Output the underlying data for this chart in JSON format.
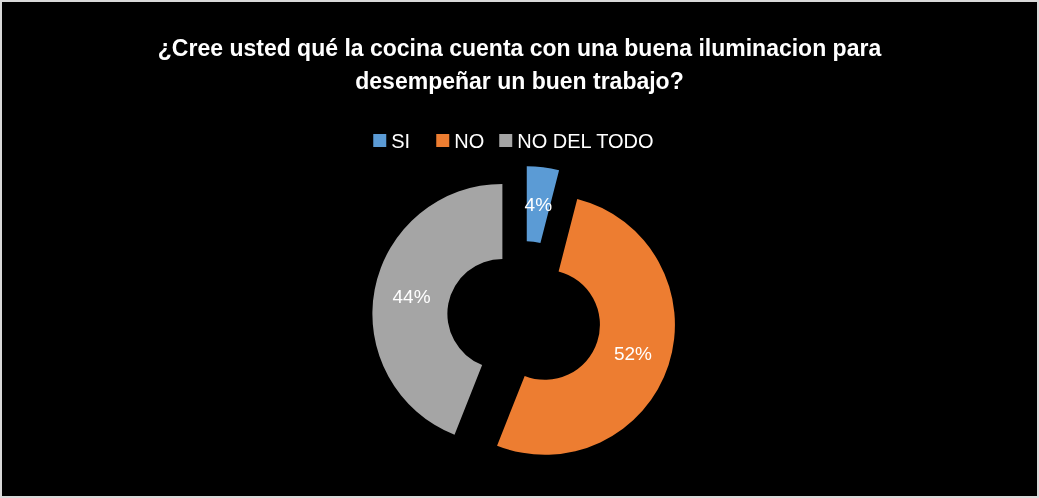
{
  "chart_data": {
    "type": "donut",
    "title": "¿Cree usted qué la cocina cuenta con una buena iluminacion para desempeñar un buen trabajo?",
    "categories": [
      "SI",
      "NO",
      "NO DEL TODO"
    ],
    "values": [
      4,
      52,
      44
    ],
    "colors": [
      "#5b9bd5",
      "#ed7d31",
      "#a5a5a5"
    ],
    "value_labels": [
      "4%",
      "52%",
      "44%"
    ],
    "legend": "top"
  }
}
